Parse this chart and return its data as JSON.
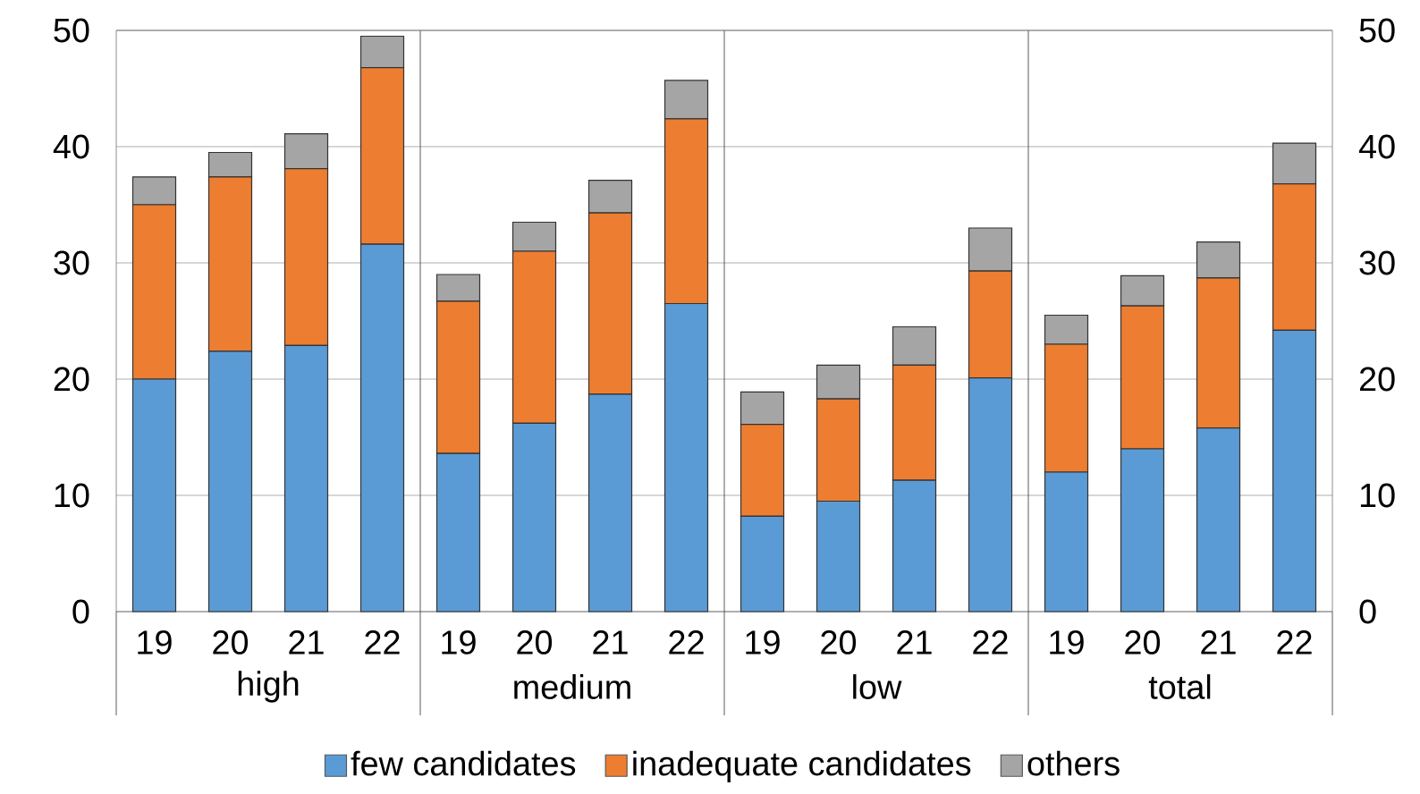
{
  "chart_data": {
    "type": "bar",
    "stacked": true,
    "categories": [
      "19",
      "20",
      "21",
      "22",
      "19",
      "20",
      "21",
      "22",
      "19",
      "20",
      "21",
      "22",
      "19",
      "20",
      "21",
      "22"
    ],
    "annotations": [
      "high",
      "medium",
      "low",
      "total"
    ],
    "series": [
      {
        "name": "few candidates",
        "color": "#5b9bd5",
        "values": [
          20.0,
          22.4,
          22.9,
          31.6,
          13.6,
          16.2,
          18.7,
          26.5,
          8.2,
          9.5,
          11.3,
          20.1,
          12.0,
          14.0,
          15.8,
          24.2
        ]
      },
      {
        "name": "inadequate candidates",
        "color": "#ed7d31",
        "values": [
          15.0,
          15.0,
          15.2,
          15.2,
          13.1,
          14.8,
          15.6,
          15.9,
          7.9,
          8.8,
          9.9,
          9.2,
          11.0,
          12.3,
          12.9,
          12.6
        ]
      },
      {
        "name": "others",
        "color": "#a5a5a5",
        "values": [
          2.4,
          2.1,
          3.0,
          2.7,
          2.3,
          2.5,
          2.8,
          3.3,
          2.8,
          2.9,
          3.3,
          3.7,
          2.5,
          2.6,
          3.1,
          3.5
        ]
      }
    ],
    "ylim": [
      0,
      50
    ],
    "yticks": [
      0,
      10,
      20,
      30,
      40,
      50
    ],
    "y2lim": [
      0,
      50
    ],
    "y2ticks": [
      0,
      10,
      20,
      30,
      40,
      50
    ],
    "grid": "y",
    "legend": "bottom"
  }
}
